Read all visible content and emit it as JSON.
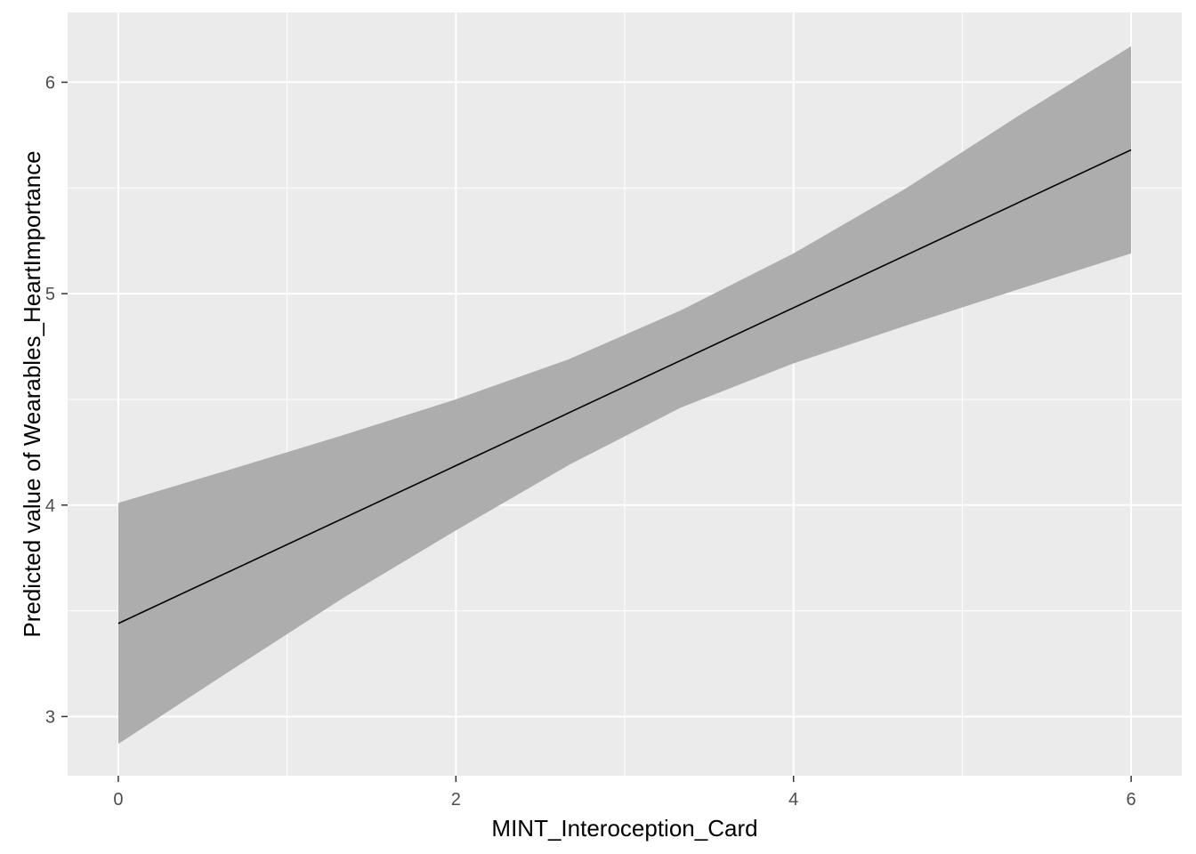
{
  "chart_data": {
    "type": "line",
    "title": "",
    "xlabel": "MINT_Interoception_Card",
    "ylabel": "Predicted value of Wearables_HeartImportance",
    "xlim": [
      -0.3,
      6.3
    ],
    "ylim": [
      2.72,
      6.33
    ],
    "x_ticks": [
      0,
      2,
      4,
      6
    ],
    "y_ticks": [
      3,
      4,
      5,
      6
    ],
    "x_tick_labels": [
      "0",
      "2",
      "4",
      "6"
    ],
    "y_tick_labels": [
      "3",
      "4",
      "5",
      "6"
    ],
    "grid": true,
    "legend": "none",
    "series": [
      {
        "x": [
          0,
          6
        ],
        "y": [
          3.44,
          5.68
        ],
        "lower": [
          2.87,
          5.19
        ],
        "upper": [
          4.01,
          6.17
        ]
      }
    ],
    "ribbon": {
      "x": [
        0,
        0.67,
        1.33,
        2,
        2.67,
        3.33,
        4,
        4.67,
        5.33,
        6
      ],
      "lower": [
        2.87,
        3.22,
        3.56,
        3.88,
        4.19,
        4.46,
        4.67,
        4.85,
        5.02,
        5.19
      ],
      "upper": [
        4.01,
        4.17,
        4.33,
        4.5,
        4.69,
        4.92,
        5.19,
        5.5,
        5.84,
        6.17
      ]
    },
    "colors": {
      "panel": "#ebebeb",
      "grid": "#ffffff",
      "ribbon": "#adadad",
      "line": "#000000",
      "tick": "#333333"
    }
  }
}
